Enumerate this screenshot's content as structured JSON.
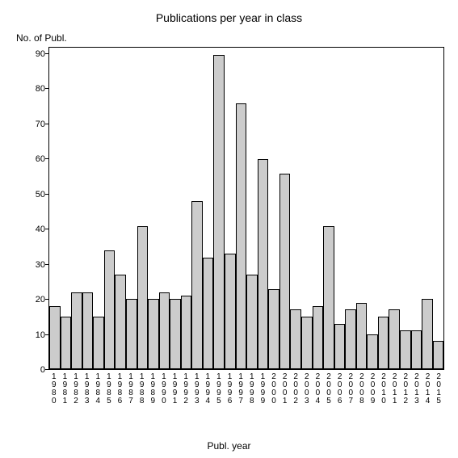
{
  "chart": {
    "type": "bar",
    "title": "Publications per year in class",
    "title_fontsize": 14,
    "y_axis_title": "No. of Publ.",
    "x_axis_title": "Publ. year",
    "label_fontsize": 12,
    "tick_fontsize": 11,
    "xlabel_fontsize": 10,
    "background_color": "#ffffff",
    "axis_color": "#000000",
    "bar_fill_color": "#cccccc",
    "bar_border_color": "#000000",
    "ylim": [
      0,
      92
    ],
    "yticks": [
      0,
      10,
      20,
      30,
      40,
      50,
      60,
      70,
      80,
      90
    ],
    "categories": [
      "1980",
      "1981",
      "1982",
      "1983",
      "1984",
      "1985",
      "1986",
      "1987",
      "1988",
      "1989",
      "1990",
      "1991",
      "1992",
      "1993",
      "1994",
      "1995",
      "1996",
      "1997",
      "1998",
      "1999",
      "2000",
      "2001",
      "2002",
      "2003",
      "2004",
      "2005",
      "2006",
      "2007",
      "2008",
      "2009",
      "2010",
      "2011",
      "2012",
      "2013",
      "2014",
      "2015"
    ],
    "values": [
      18,
      15,
      22,
      22,
      15,
      34,
      27,
      20,
      41,
      20,
      22,
      20,
      21,
      48,
      32,
      90,
      33,
      76,
      27,
      60,
      23,
      56,
      17,
      15,
      18,
      41,
      13,
      17,
      19,
      10,
      15,
      17,
      11,
      11,
      20,
      8
    ]
  }
}
